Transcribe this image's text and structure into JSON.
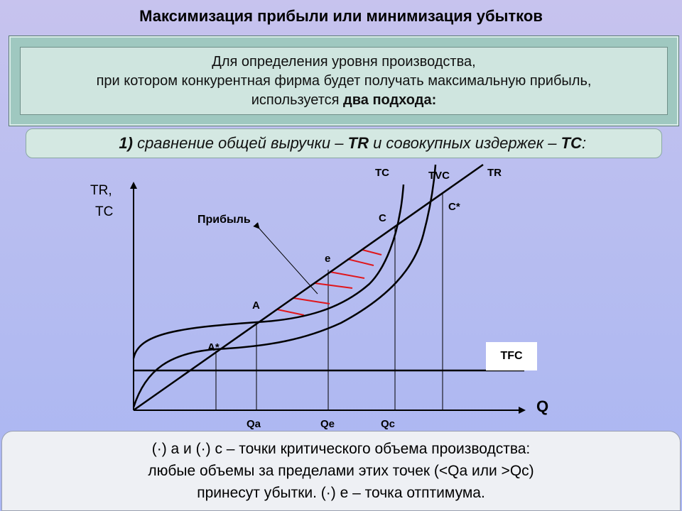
{
  "title": "Максимизация прибыли или минимизация убытков",
  "intro": {
    "line1": "Для определения уровня производства,",
    "line2": "при котором конкурентная фирма будет получать максимальную прибыль,",
    "line3_prefix": "используется ",
    "line3_bold": "два подхода:"
  },
  "approach": {
    "number": "1)",
    "text_a": " сравнение общей выручки – ",
    "tr": "TR",
    "text_b": " и совокупных издержек – ",
    "tc": "TC",
    "colon": ":"
  },
  "diagram": {
    "y_axis_label_1": "TR,",
    "y_axis_label_2": "TC",
    "x_axis_label": "Q",
    "curve_labels": {
      "tc": "TC",
      "tvc": "TVC",
      "tr": "TR",
      "tfc": "TFC"
    },
    "points": {
      "c": "C",
      "c_star": "C*",
      "e": "e",
      "a": "A",
      "a_star": "A*"
    },
    "profit_label": "Прибыль",
    "x_ticks": {
      "qa": "Qa",
      "qe": "Qe",
      "qc": "Qc"
    },
    "hatch_color": "#e0161b"
  },
  "note": {
    "line1": "(·) а и (·) с – точки критического объема производства:",
    "line2": "любые объемы за пределами этих точек (<Qа или >Qс)",
    "line3": "принесут убытки. (·) е – точка отптимума."
  }
}
